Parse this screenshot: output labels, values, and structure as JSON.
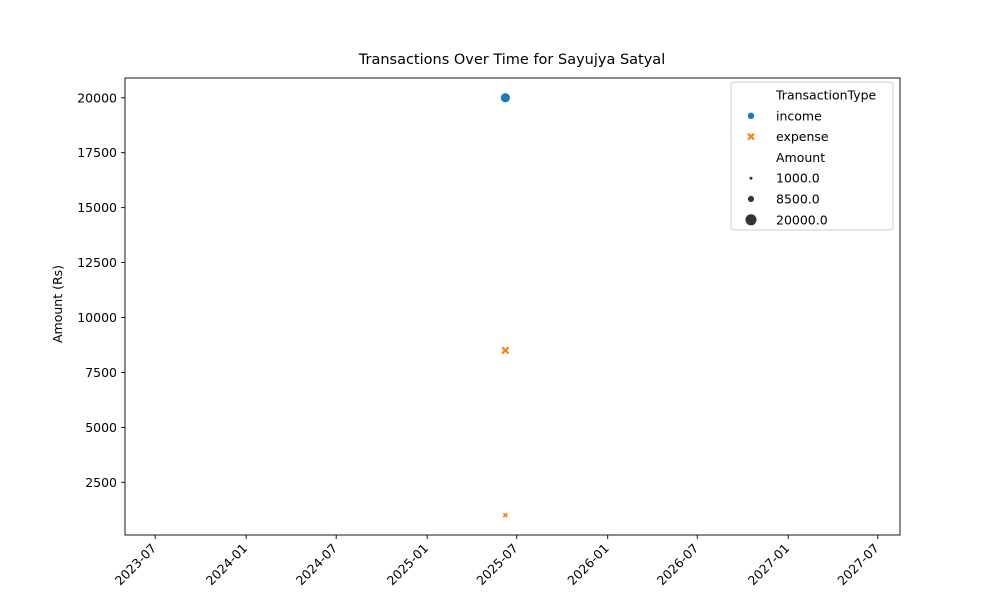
{
  "chart_data": {
    "type": "scatter",
    "title": "Transactions Over Time for Sayujya Satyal",
    "xlabel": "",
    "ylabel": "Amount (Rs)",
    "x_ticks": [
      "2023-07",
      "2024-01",
      "2024-07",
      "2025-01",
      "2025-07",
      "2026-01",
      "2026-07",
      "2027-01",
      "2027-07"
    ],
    "y_ticks": [
      2500,
      5000,
      7500,
      10000,
      12500,
      15000,
      17500,
      20000
    ],
    "xlim": [
      "2023-05-01",
      "2027-08-15"
    ],
    "ylim": [
      100,
      20900
    ],
    "grid": false,
    "legend_placement": "top-right",
    "legend": {
      "hue_title": "TransactionType",
      "hue_entries": [
        {
          "label": "income",
          "marker": "circle",
          "color": "#1f77b4"
        },
        {
          "label": "expense",
          "marker": "x",
          "color": "#ff7f0e"
        }
      ],
      "size_title": "Amount",
      "size_entries": [
        "1000.0",
        "8500.0",
        "20000.0"
      ]
    },
    "series": [
      {
        "name": "income",
        "marker": "circle",
        "color": "#1f77b4",
        "points": [
          {
            "x": "2025-06-08",
            "y": 20000
          }
        ]
      },
      {
        "name": "expense",
        "marker": "x",
        "color": "#ff7f0e",
        "points": [
          {
            "x": "2025-06-08",
            "y": 8500
          },
          {
            "x": "2025-06-08",
            "y": 1000
          }
        ]
      }
    ]
  }
}
